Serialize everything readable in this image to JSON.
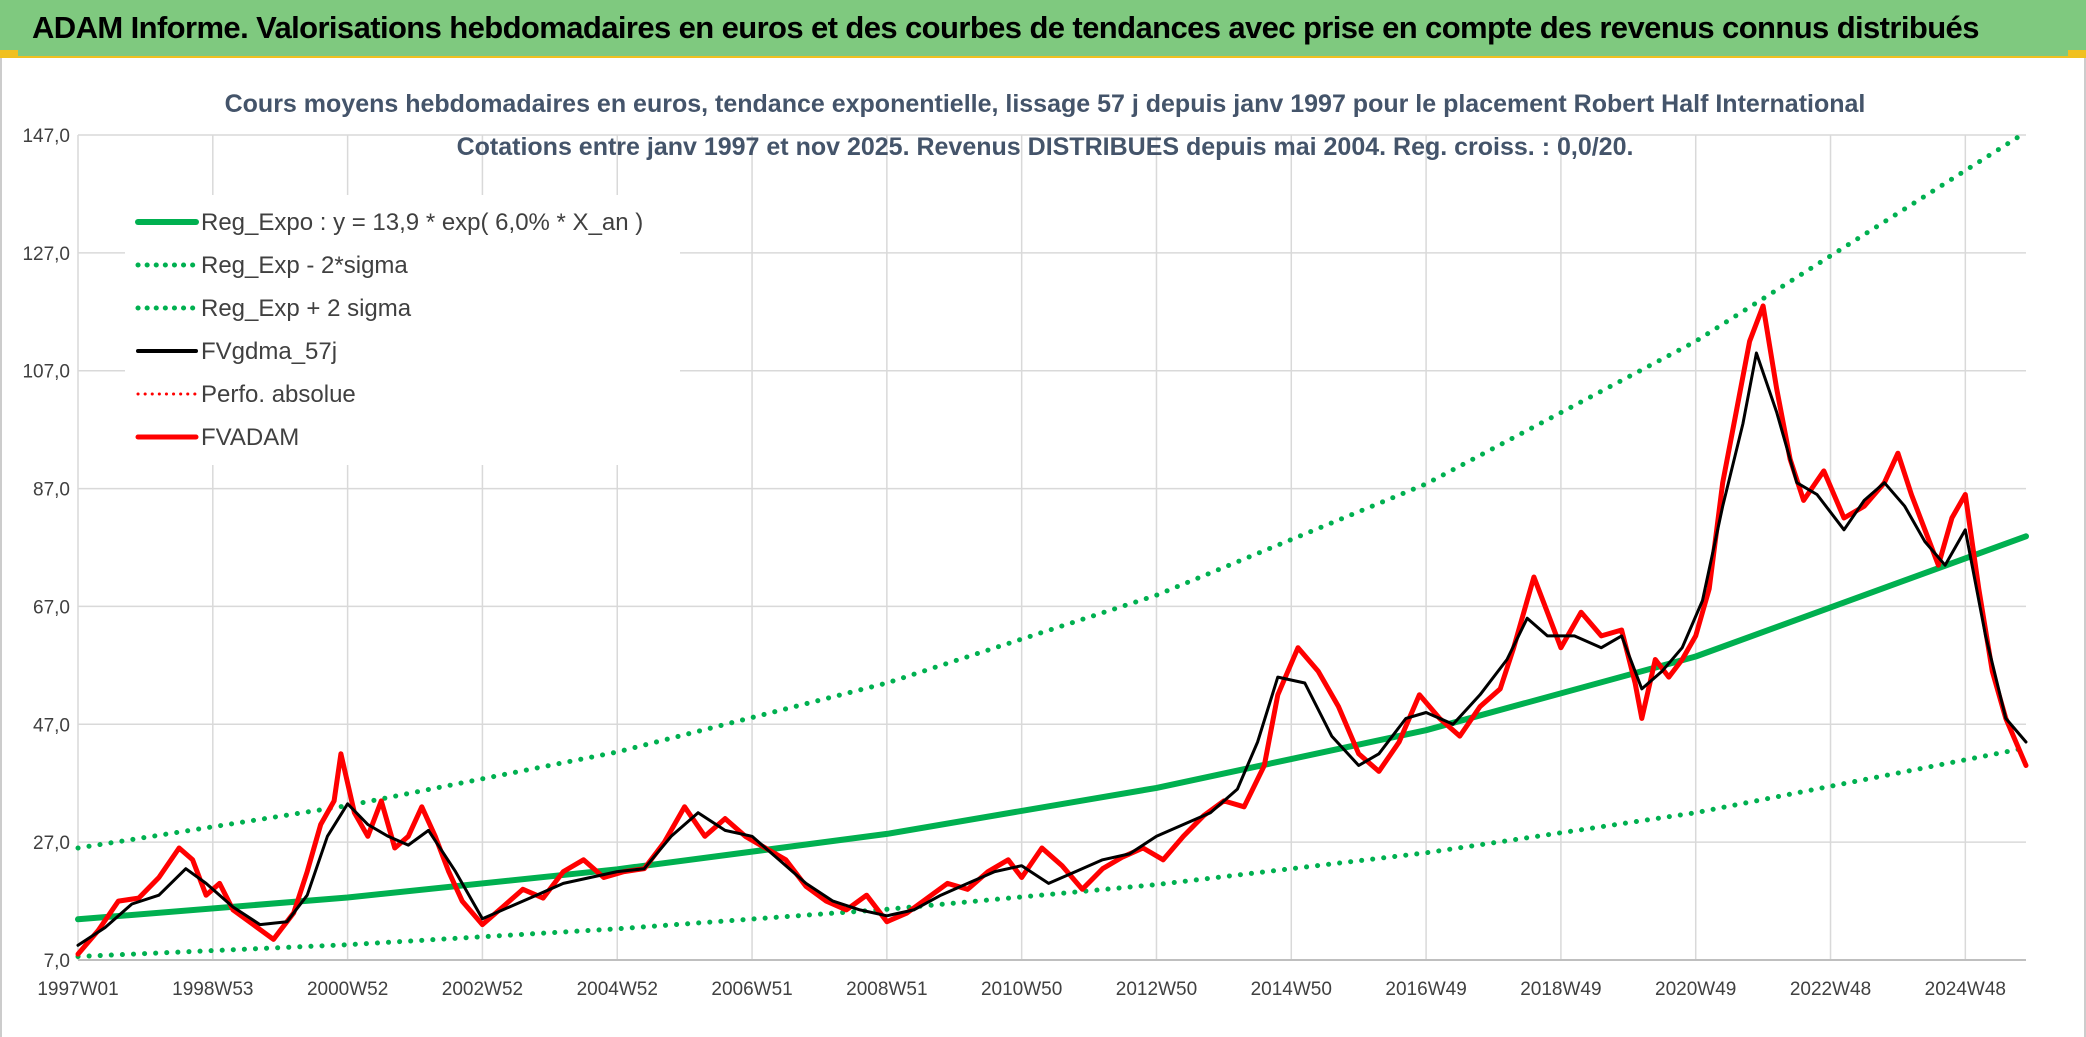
{
  "banner": {
    "title": "ADAM Informe. Valorisations hebdomadaires en euros et des courbes de tendances avec prise en compte des revenus connus distribués"
  },
  "colors": {
    "banner_bg": "#7fc97f",
    "banner_accent": "#f0c020",
    "reg_green": "#00b050",
    "fvgdma": "#000000",
    "fvadam": "#ff0000",
    "perfo": "#ff0000",
    "grid": "#d9d9d9"
  },
  "chart_data": {
    "type": "line",
    "title": "Cours moyens hebdomadaires en euros, tendance exponentielle, lissage 57 j depuis janv 1997 pour le placement Robert Half International",
    "subtitle": "Cotations entre janv 1997 et nov 2025. Revenus DISTRIBUES depuis mai 2004. Reg. croiss. : 0,0/20.",
    "xlabel": "",
    "ylabel": "",
    "x_tick_labels": [
      "1997W01",
      "1998W53",
      "2000W52",
      "2002W52",
      "2004W52",
      "2006W51",
      "2008W51",
      "2010W50",
      "2012W50",
      "2014W50",
      "2016W49",
      "2018W49",
      "2020W49",
      "2022W48",
      "2024W48"
    ],
    "x_ticks": [
      1997.0,
      1999.0,
      2001.0,
      2003.0,
      2005.0,
      2007.0,
      2009.0,
      2011.0,
      2013.0,
      2015.0,
      2017.0,
      2019.0,
      2021.0,
      2023.0,
      2025.0
    ],
    "xlim": [
      1997.0,
      2025.9
    ],
    "y_tick_labels": [
      "7,0",
      "27,0",
      "47,0",
      "67,0",
      "87,0",
      "107,0",
      "127,0",
      "147,0"
    ],
    "y_ticks": [
      7,
      27,
      47,
      67,
      87,
      107,
      127,
      147
    ],
    "ylim": [
      7,
      147
    ],
    "grid": true,
    "legend_position": "top-left",
    "legend": [
      {
        "label": "Reg_Expo : y = 13,9 * exp( 6,0% *  X_an )",
        "series": "reg_expo"
      },
      {
        "label": "Reg_Exp - 2*sigma",
        "series": "reg_minus"
      },
      {
        "label": "Reg_Exp + 2 sigma",
        "series": "reg_plus"
      },
      {
        "label": "FVgdma_57j",
        "series": "fvgdma"
      },
      {
        "label": "Perfo. absolue",
        "series": "perfo"
      },
      {
        "label": "FVADAM",
        "series": "fvadam"
      }
    ],
    "series": [
      {
        "id": "reg_expo",
        "color": "#00b050",
        "style": "solid",
        "width": 6,
        "x": [
          1997.0,
          2001.0,
          2005.0,
          2009.0,
          2013.0,
          2017.0,
          2021.0,
          2025.9
        ],
        "y": [
          13.9,
          17.6,
          22.4,
          28.4,
          36.2,
          46.0,
          58.5,
          78.9
        ]
      },
      {
        "id": "reg_minus",
        "color": "#00b050",
        "style": "dotted",
        "width": 5,
        "x": [
          1997.0,
          2001.0,
          2005.0,
          2009.0,
          2013.0,
          2017.0,
          2021.0,
          2025.9
        ],
        "y": [
          7.6,
          9.6,
          12.3,
          15.6,
          19.8,
          25.2,
          32.0,
          43.0
        ]
      },
      {
        "id": "reg_plus",
        "color": "#00b050",
        "style": "dotted",
        "width": 5,
        "x": [
          1997.0,
          2001.0,
          2005.0,
          2009.0,
          2013.0,
          2017.0,
          2021.0,
          2025.9
        ],
        "y": [
          26.0,
          33.2,
          42.3,
          54.0,
          68.9,
          87.8,
          112.0,
          147.5
        ]
      },
      {
        "id": "fvgdma",
        "color": "#000000",
        "style": "solid",
        "width": 3,
        "x": [
          1997.0,
          1997.4,
          1997.8,
          1998.2,
          1998.6,
          1998.9,
          1999.3,
          1999.7,
          2000.1,
          2000.4,
          2000.7,
          2001.0,
          2001.3,
          2001.6,
          2001.9,
          2002.2,
          2002.6,
          2003.0,
          2003.4,
          2003.8,
          2004.2,
          2004.6,
          2005.0,
          2005.4,
          2005.8,
          2006.2,
          2006.6,
          2007.0,
          2007.4,
          2007.8,
          2008.2,
          2008.6,
          2009.0,
          2009.4,
          2009.8,
          2010.2,
          2010.6,
          2011.0,
          2011.4,
          2011.8,
          2012.2,
          2012.6,
          2013.0,
          2013.4,
          2013.8,
          2014.2,
          2014.5,
          2014.8,
          2015.2,
          2015.6,
          2016.0,
          2016.3,
          2016.7,
          2017.0,
          2017.4,
          2017.8,
          2018.2,
          2018.5,
          2018.8,
          2019.2,
          2019.6,
          2019.9,
          2020.2,
          2020.5,
          2020.8,
          2021.1,
          2021.4,
          2021.7,
          2021.9,
          2022.2,
          2022.5,
          2022.8,
          2023.2,
          2023.5,
          2023.8,
          2024.1,
          2024.4,
          2024.7,
          2025.0,
          2025.3,
          2025.6,
          2025.9
        ],
        "y": [
          9.5,
          12.5,
          16.5,
          18.0,
          22.5,
          20.0,
          16.0,
          13.0,
          13.5,
          18.0,
          28.0,
          33.5,
          30.0,
          28.0,
          26.5,
          29.0,
          22.0,
          14.0,
          16.0,
          18.0,
          20.0,
          21.0,
          22.0,
          22.5,
          28.0,
          32.0,
          29.0,
          28.0,
          24.0,
          20.0,
          17.0,
          15.5,
          14.5,
          15.5,
          18.0,
          20.0,
          22.0,
          23.0,
          20.0,
          22.0,
          24.0,
          25.0,
          28.0,
          30.0,
          32.0,
          36.0,
          44.0,
          55.0,
          54.0,
          45.0,
          40.0,
          42.0,
          48.0,
          49.0,
          47.0,
          52.0,
          58.0,
          65.0,
          62.0,
          62.0,
          60.0,
          62.0,
          53.0,
          56.0,
          60.0,
          68.0,
          84.0,
          98.0,
          110.0,
          100.0,
          88.0,
          86.0,
          80.0,
          85.0,
          88.0,
          84.0,
          78.0,
          74.0,
          80.0,
          62.0,
          48.0,
          44.0
        ]
      },
      {
        "id": "fvadam",
        "color": "#ff0000",
        "style": "solid",
        "width": 5,
        "x": [
          1997.0,
          1997.3,
          1997.6,
          1997.9,
          1998.2,
          1998.5,
          1998.7,
          1998.9,
          1999.1,
          1999.3,
          1999.6,
          1999.9,
          2000.0,
          2000.2,
          2000.4,
          2000.6,
          2000.8,
          2000.9,
          2001.1,
          2001.3,
          2001.5,
          2001.7,
          2001.9,
          2002.1,
          2002.3,
          2002.5,
          2002.7,
          2003.0,
          2003.3,
          2003.6,
          2003.9,
          2004.2,
          2004.5,
          2004.8,
          2005.1,
          2005.4,
          2005.7,
          2006.0,
          2006.3,
          2006.6,
          2006.9,
          2007.2,
          2007.5,
          2007.8,
          2008.1,
          2008.4,
          2008.7,
          2009.0,
          2009.3,
          2009.6,
          2009.9,
          2010.2,
          2010.5,
          2010.8,
          2011.0,
          2011.3,
          2011.6,
          2011.9,
          2012.2,
          2012.5,
          2012.8,
          2013.1,
          2013.4,
          2013.7,
          2014.0,
          2014.3,
          2014.6,
          2014.8,
          2015.1,
          2015.4,
          2015.7,
          2016.0,
          2016.3,
          2016.6,
          2016.9,
          2017.2,
          2017.5,
          2017.8,
          2018.1,
          2018.3,
          2018.6,
          2018.8,
          2019.0,
          2019.3,
          2019.6,
          2019.9,
          2020.1,
          2020.2,
          2020.4,
          2020.6,
          2020.8,
          2021.0,
          2021.2,
          2021.4,
          2021.6,
          2021.8,
          2022.0,
          2022.2,
          2022.4,
          2022.6,
          2022.9,
          2023.2,
          2023.5,
          2023.8,
          2024.0,
          2024.2,
          2024.4,
          2024.6,
          2024.8,
          2025.0,
          2025.2,
          2025.4,
          2025.6,
          2025.9
        ],
        "y": [
          8.0,
          12.0,
          17.0,
          17.5,
          21.0,
          26.0,
          24.0,
          18.0,
          20.0,
          15.5,
          13.0,
          10.5,
          12.0,
          15.0,
          22.0,
          30.0,
          34.0,
          42.0,
          32.0,
          28.0,
          34.0,
          26.0,
          28.0,
          33.0,
          28.0,
          22.0,
          17.0,
          13.0,
          16.0,
          19.0,
          17.5,
          22.0,
          24.0,
          21.0,
          22.0,
          22.5,
          27.0,
          33.0,
          28.0,
          31.0,
          28.0,
          26.0,
          24.0,
          19.5,
          17.0,
          15.5,
          18.0,
          13.5,
          15.0,
          17.5,
          20.0,
          19.0,
          22.0,
          24.0,
          21.0,
          26.0,
          23.0,
          19.0,
          22.5,
          24.5,
          26.0,
          24.0,
          28.0,
          31.5,
          34.0,
          33.0,
          40.0,
          52.0,
          60.0,
          56.0,
          50.0,
          42.0,
          39.0,
          44.0,
          52.0,
          48.0,
          45.0,
          50.0,
          53.0,
          60.0,
          72.0,
          66.0,
          60.0,
          66.0,
          62.0,
          63.0,
          54.0,
          48.0,
          58.0,
          55.0,
          58.0,
          62.0,
          70.0,
          88.0,
          100.0,
          112.0,
          118.0,
          104.0,
          92.0,
          85.0,
          90.0,
          82.0,
          84.0,
          88.0,
          93.0,
          86.0,
          80.0,
          74.0,
          82.0,
          86.0,
          70.0,
          56.0,
          48.0,
          40.0
        ]
      }
    ]
  }
}
